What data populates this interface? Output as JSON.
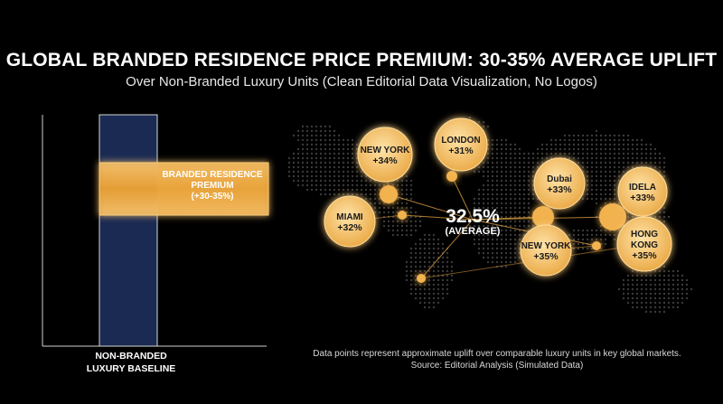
{
  "header": {
    "title": "GLOBAL BRANDED RESIDENCE PRICE PREMIUM: 30-35% AVERAGE UPLIFT",
    "subtitle": "Over Non-Branded Luxury Units (Clean Editorial Data Visualization, No Logos)"
  },
  "colors": {
    "background": "#000000",
    "baseline_bar": "#1a2a52",
    "premium_gold": "#f2b24e",
    "bubble_fill": "#f5c57a",
    "map_dots": "#3a3a3a"
  },
  "chart_data": [
    {
      "type": "bar",
      "categories": [
        "NON-BRANDED LUXURY BASELINE"
      ],
      "baseline_label": "NON-BRANDED\nLUXURY BASELINE",
      "premium_band": {
        "label": "BRANDED RESIDENCE\nPREMIUM\n(+30-35%)",
        "range": [
          30,
          35
        ]
      }
    },
    {
      "type": "scatter",
      "average": {
        "value": "32.5%",
        "label": "(AVERAGE)"
      },
      "cities": [
        {
          "city": "NEW YORK",
          "premium": "+34%",
          "value": 34
        },
        {
          "city": "LONDON",
          "premium": "+31%",
          "value": 31
        },
        {
          "city": "Dubai",
          "premium": "+33%",
          "value": 33
        },
        {
          "city": "IDELA",
          "premium": "+33%",
          "value": 33
        },
        {
          "city": "MIAMI",
          "premium": "+32%",
          "value": 32
        },
        {
          "city": "NEW YORK",
          "premium": "+35%",
          "value": 35
        },
        {
          "city": "HONG\nKONG",
          "premium": "+35%",
          "value": 35
        }
      ]
    }
  ],
  "footnote": {
    "line1": "Data points represent approximate uplift over comparable luxury units in key global markets.",
    "line2": "Source: Editorial Analysis (Simulated Data)"
  }
}
